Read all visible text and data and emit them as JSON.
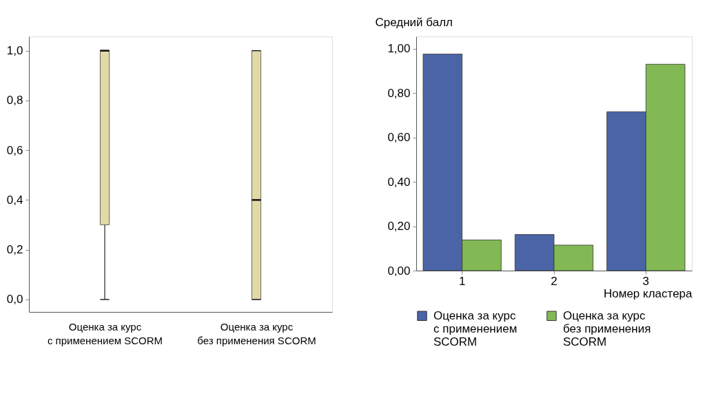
{
  "chart_data": [
    {
      "type": "box",
      "categories": [
        "Оценка за курс\nс применением SCORM",
        "Оценка за курс\nбез применения SCORM"
      ],
      "series": [
        {
          "color": "#e0d9a8",
          "boxes": [
            {
              "low": 0,
              "q1": 0.3,
              "median": 1.0,
              "q3": 1.0,
              "high": 1.0
            },
            {
              "low": 0,
              "q1": 0,
              "median": 0.4,
              "q3": 1.0,
              "high": 1.0
            }
          ]
        }
      ],
      "ylim": [
        -0.05,
        1.057
      ],
      "yticks": [
        {
          "value": 0,
          "label": "0,0"
        },
        {
          "value": 0.2,
          "label": "0,2"
        },
        {
          "value": 0.4,
          "label": "0,4"
        },
        {
          "value": 0.6,
          "label": "0,6"
        },
        {
          "value": 0.8,
          "label": "0,8"
        },
        {
          "value": 1.0,
          "label": "1,0"
        }
      ],
      "grid": false
    },
    {
      "type": "bar",
      "categories": [
        "1",
        "2",
        "3"
      ],
      "xlabel": "Номер кластера",
      "ylabel": "Средний балл",
      "series": [
        {
          "name": "Оценка за курс\nс применением\nSCORM",
          "color": "#4a64a6",
          "values": [
            0.976,
            0.163,
            0.716
          ]
        },
        {
          "name": "Оценка за курс\nбез применения\nSCORM",
          "color": "#82b955",
          "values": [
            0.138,
            0.115,
            0.93
          ]
        }
      ],
      "ylim": [
        0,
        1.055
      ],
      "yticks": [
        {
          "value": 0,
          "label": "0,00"
        },
        {
          "value": 0.2,
          "label": "0,20"
        },
        {
          "value": 0.4,
          "label": "0,40"
        },
        {
          "value": 0.6,
          "label": "0,60"
        },
        {
          "value": 0.8,
          "label": "0,80"
        },
        {
          "value": 1.0,
          "label": "1,00"
        }
      ],
      "legend": "bottom",
      "grid": false
    }
  ]
}
